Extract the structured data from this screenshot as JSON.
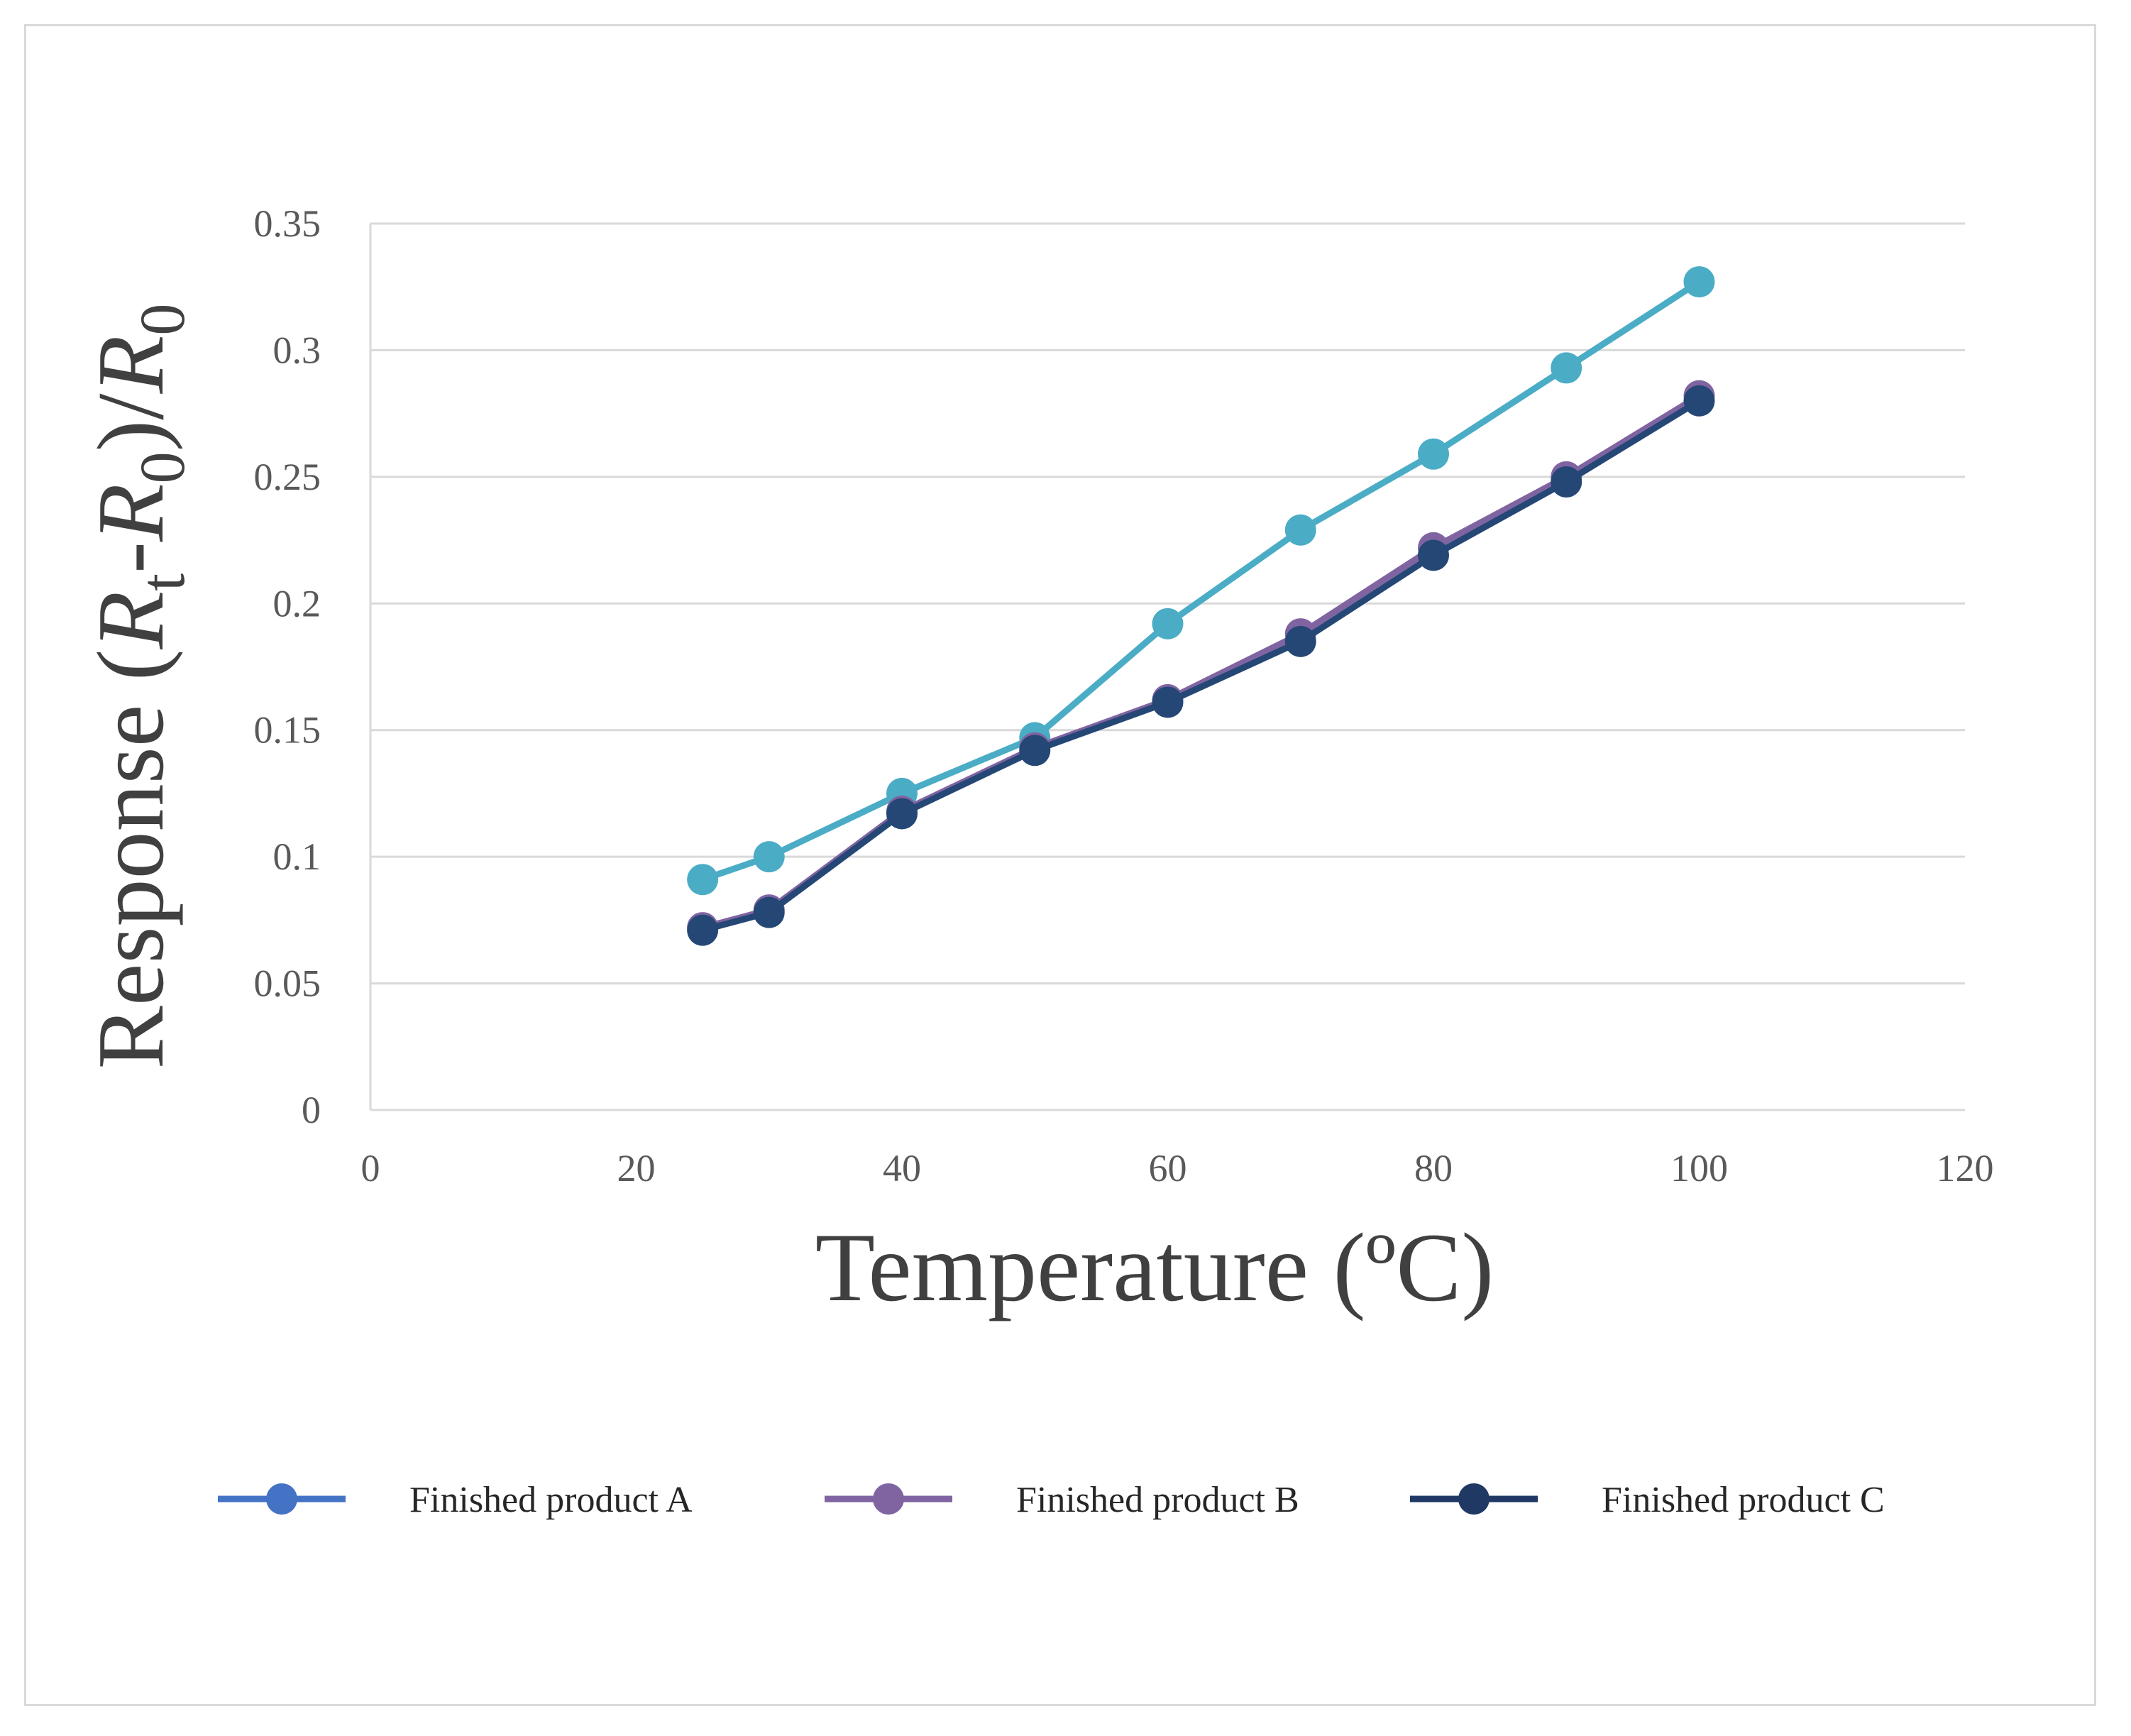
{
  "chart_data": {
    "type": "line",
    "title": "",
    "xlabel": "Temperature (ºC)",
    "ylabel": {
      "prefix": "Response (",
      "r1": "R",
      "sub1": "t",
      "dash": "-",
      "r2": "R",
      "sub2": "0",
      "close": ")/",
      "r3": "R",
      "sub3": "0"
    },
    "xlim": [
      0,
      120
    ],
    "ylim": [
      0,
      0.35
    ],
    "xticks": [
      0,
      20,
      40,
      60,
      80,
      100,
      120
    ],
    "yticks": [
      0,
      0.05,
      0.1,
      0.15,
      0.2,
      0.25,
      0.3,
      0.35
    ],
    "ytick_labels": [
      "0",
      "0.05",
      "0.1",
      "0.15",
      "0.2",
      "0.25",
      "0.3",
      "0.35"
    ],
    "xtick_labels": [
      "0",
      "20",
      "40",
      "60",
      "80",
      "100",
      "120"
    ],
    "grid": "horizontal",
    "legend_position": "bottom",
    "x": [
      25,
      30,
      40,
      50,
      60,
      70,
      80,
      90,
      100
    ],
    "series": [
      {
        "name": "Finished product A",
        "legend_color": "#4472c4",
        "color": "#4bacc6",
        "values": [
          0.091,
          0.1,
          0.125,
          0.147,
          0.192,
          0.229,
          0.259,
          0.293,
          0.327
        ]
      },
      {
        "name": "Finished product B",
        "legend_color": "#8064a2",
        "color": "#8064a2",
        "values": [
          0.072,
          0.079,
          0.118,
          0.143,
          0.162,
          0.188,
          0.222,
          0.25,
          0.282
        ]
      },
      {
        "name": "Finished product C",
        "legend_color": "#1f3864",
        "color": "#254775",
        "values": [
          0.071,
          0.078,
          0.117,
          0.142,
          0.161,
          0.185,
          0.219,
          0.248,
          0.28
        ]
      }
    ]
  }
}
